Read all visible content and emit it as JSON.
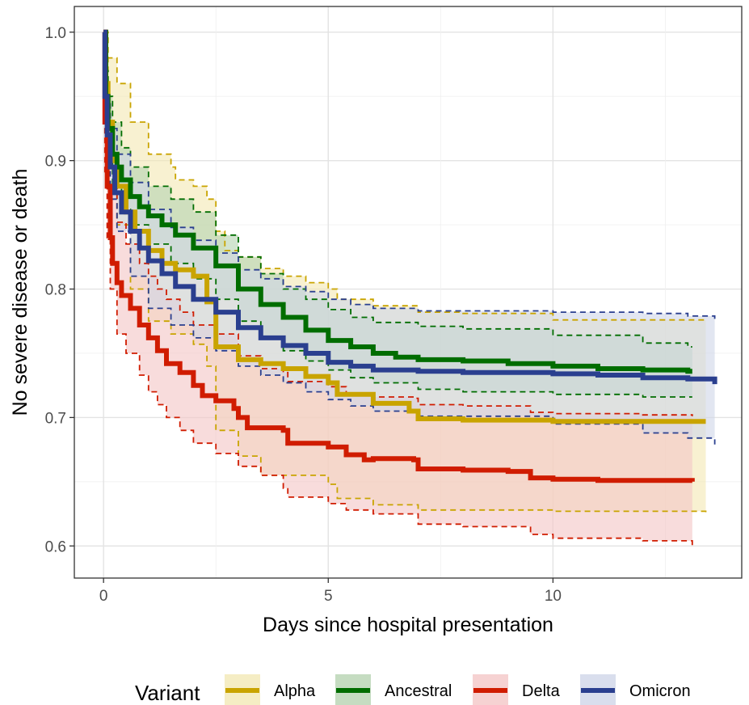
{
  "chart_data": {
    "type": "line",
    "subtype": "kaplan-meier step curves with confidence bands",
    "xlabel": "Days since hospital presentation",
    "ylabel": "No severe disease or death",
    "xlim": [
      -0.65,
      14.2
    ],
    "ylim": [
      0.575,
      1.02
    ],
    "x_ticks": [
      0,
      5,
      10
    ],
    "y_ticks": [
      0.6,
      0.7,
      0.8,
      0.9,
      1.0
    ],
    "y_tick_labels": [
      "0.6",
      "0.7",
      "0.8",
      "0.9",
      "1.0"
    ],
    "grid": true,
    "theme": "bw",
    "legend": {
      "title": "Variant",
      "position": "bottom",
      "entries": [
        "Alpha",
        "Ancestral",
        "Delta",
        "Omicron"
      ]
    },
    "series": [
      {
        "name": "Alpha",
        "color": "#C9A400",
        "fill": "#F3E9B5",
        "points": [
          [
            0,
            1.0
          ],
          [
            0.05,
            0.96
          ],
          [
            0.1,
            0.93
          ],
          [
            0.2,
            0.9
          ],
          [
            0.3,
            0.88
          ],
          [
            0.5,
            0.86
          ],
          [
            0.7,
            0.845
          ],
          [
            1.0,
            0.83
          ],
          [
            1.3,
            0.82
          ],
          [
            1.6,
            0.815
          ],
          [
            2.0,
            0.81
          ],
          [
            2.3,
            0.79
          ],
          [
            2.5,
            0.775
          ],
          [
            2.5,
            0.755
          ],
          [
            3.0,
            0.745
          ],
          [
            3.5,
            0.742
          ],
          [
            4.0,
            0.738
          ],
          [
            4.5,
            0.732
          ],
          [
            5.0,
            0.727
          ],
          [
            5.2,
            0.718
          ],
          [
            6.0,
            0.711
          ],
          [
            6.8,
            0.705
          ],
          [
            7.0,
            0.699
          ],
          [
            8.0,
            0.698
          ],
          [
            10.0,
            0.697
          ],
          [
            13.4,
            0.697
          ]
        ],
        "upper": [
          [
            0,
            1.0
          ],
          [
            0.1,
            0.98
          ],
          [
            0.3,
            0.96
          ],
          [
            0.6,
            0.93
          ],
          [
            1.0,
            0.905
          ],
          [
            1.5,
            0.895
          ],
          [
            1.6,
            0.885
          ],
          [
            2.0,
            0.88
          ],
          [
            2.3,
            0.87
          ],
          [
            2.5,
            0.845
          ],
          [
            2.7,
            0.83
          ],
          [
            3.0,
            0.825
          ],
          [
            3.5,
            0.816
          ],
          [
            4.0,
            0.81
          ],
          [
            4.5,
            0.805
          ],
          [
            5.0,
            0.8
          ],
          [
            5.2,
            0.792
          ],
          [
            6.0,
            0.787
          ],
          [
            7.0,
            0.782
          ],
          [
            8.0,
            0.781
          ],
          [
            10.0,
            0.776
          ],
          [
            13.4,
            0.775
          ]
        ],
        "lower": [
          [
            0,
            1.0
          ],
          [
            0.1,
            0.9
          ],
          [
            0.3,
            0.85
          ],
          [
            0.6,
            0.8
          ],
          [
            1.0,
            0.775
          ],
          [
            1.5,
            0.765
          ],
          [
            2.0,
            0.757
          ],
          [
            2.3,
            0.74
          ],
          [
            2.5,
            0.73
          ],
          [
            2.5,
            0.69
          ],
          [
            3.0,
            0.67
          ],
          [
            3.5,
            0.655
          ],
          [
            4.0,
            0.655
          ],
          [
            5.0,
            0.648
          ],
          [
            5.2,
            0.637
          ],
          [
            6.0,
            0.632
          ],
          [
            7.0,
            0.628
          ],
          [
            10.0,
            0.627
          ],
          [
            13.4,
            0.626
          ]
        ]
      },
      {
        "name": "Ancestral",
        "color": "#006D00",
        "fill": "#B7D3B1",
        "points": [
          [
            0,
            1.0
          ],
          [
            0.05,
            0.95
          ],
          [
            0.1,
            0.925
          ],
          [
            0.2,
            0.905
          ],
          [
            0.3,
            0.895
          ],
          [
            0.4,
            0.885
          ],
          [
            0.6,
            0.872
          ],
          [
            0.8,
            0.864
          ],
          [
            1.0,
            0.857
          ],
          [
            1.3,
            0.85
          ],
          [
            1.6,
            0.842
          ],
          [
            2.0,
            0.832
          ],
          [
            2.5,
            0.818
          ],
          [
            3.0,
            0.8
          ],
          [
            3.5,
            0.788
          ],
          [
            4.0,
            0.778
          ],
          [
            4.5,
            0.768
          ],
          [
            5.0,
            0.76
          ],
          [
            5.5,
            0.755
          ],
          [
            6.0,
            0.75
          ],
          [
            6.5,
            0.747
          ],
          [
            7.0,
            0.745
          ],
          [
            8.0,
            0.744
          ],
          [
            9.0,
            0.742
          ],
          [
            10.0,
            0.74
          ],
          [
            11.0,
            0.738
          ],
          [
            12.0,
            0.737
          ],
          [
            13.0,
            0.736
          ],
          [
            13.1,
            0.736
          ]
        ],
        "upper": [
          [
            0,
            1.0
          ],
          [
            0.05,
            0.97
          ],
          [
            0.1,
            0.95
          ],
          [
            0.2,
            0.93
          ],
          [
            0.4,
            0.91
          ],
          [
            0.6,
            0.895
          ],
          [
            1.0,
            0.88
          ],
          [
            1.5,
            0.87
          ],
          [
            2.0,
            0.86
          ],
          [
            2.5,
            0.842
          ],
          [
            3.0,
            0.825
          ],
          [
            3.5,
            0.812
          ],
          [
            4.0,
            0.8
          ],
          [
            4.5,
            0.792
          ],
          [
            5.0,
            0.784
          ],
          [
            5.5,
            0.778
          ],
          [
            6.0,
            0.774
          ],
          [
            7.0,
            0.771
          ],
          [
            8.0,
            0.769
          ],
          [
            10.0,
            0.764
          ],
          [
            12.0,
            0.758
          ],
          [
            13.0,
            0.755
          ],
          [
            13.1,
            0.755
          ]
        ],
        "lower": [
          [
            0,
            1.0
          ],
          [
            0.05,
            0.93
          ],
          [
            0.1,
            0.9
          ],
          [
            0.2,
            0.88
          ],
          [
            0.4,
            0.862
          ],
          [
            0.6,
            0.85
          ],
          [
            1.0,
            0.835
          ],
          [
            1.5,
            0.82
          ],
          [
            2.0,
            0.808
          ],
          [
            2.5,
            0.792
          ],
          [
            3.0,
            0.775
          ],
          [
            3.5,
            0.762
          ],
          [
            4.0,
            0.752
          ],
          [
            4.5,
            0.744
          ],
          [
            5.0,
            0.737
          ],
          [
            5.5,
            0.731
          ],
          [
            6.0,
            0.727
          ],
          [
            7.0,
            0.722
          ],
          [
            8.0,
            0.72
          ],
          [
            10.0,
            0.718
          ],
          [
            12.0,
            0.716
          ],
          [
            13.0,
            0.716
          ],
          [
            13.1,
            0.716
          ]
        ]
      },
      {
        "name": "Delta",
        "color": "#D01C00",
        "fill": "#F4C7C7",
        "points": [
          [
            0,
            1.0
          ],
          [
            0.03,
            0.93
          ],
          [
            0.08,
            0.88
          ],
          [
            0.15,
            0.84
          ],
          [
            0.2,
            0.82
          ],
          [
            0.3,
            0.805
          ],
          [
            0.4,
            0.795
          ],
          [
            0.6,
            0.785
          ],
          [
            0.8,
            0.772
          ],
          [
            1.0,
            0.762
          ],
          [
            1.2,
            0.752
          ],
          [
            1.4,
            0.742
          ],
          [
            1.7,
            0.735
          ],
          [
            2.0,
            0.725
          ],
          [
            2.2,
            0.717
          ],
          [
            2.5,
            0.713
          ],
          [
            2.9,
            0.707
          ],
          [
            3.0,
            0.7
          ],
          [
            3.2,
            0.692
          ],
          [
            4.0,
            0.69
          ],
          [
            4.1,
            0.68
          ],
          [
            5.0,
            0.677
          ],
          [
            5.4,
            0.671
          ],
          [
            5.8,
            0.667
          ],
          [
            6.0,
            0.668
          ],
          [
            6.9,
            0.667
          ],
          [
            7.0,
            0.66
          ],
          [
            8.0,
            0.659
          ],
          [
            9.0,
            0.658
          ],
          [
            9.5,
            0.653
          ],
          [
            10.0,
            0.652
          ],
          [
            11.0,
            0.651
          ],
          [
            12.0,
            0.651
          ],
          [
            13.1,
            0.65
          ]
        ],
        "upper": [
          [
            0,
            1.0
          ],
          [
            0.03,
            0.96
          ],
          [
            0.08,
            0.92
          ],
          [
            0.15,
            0.88
          ],
          [
            0.3,
            0.852
          ],
          [
            0.5,
            0.835
          ],
          [
            0.8,
            0.82
          ],
          [
            1.0,
            0.81
          ],
          [
            1.2,
            0.8
          ],
          [
            1.4,
            0.792
          ],
          [
            1.7,
            0.782
          ],
          [
            2.0,
            0.772
          ],
          [
            2.5,
            0.765
          ],
          [
            3.0,
            0.748
          ],
          [
            3.5,
            0.738
          ],
          [
            4.0,
            0.735
          ],
          [
            4.1,
            0.728
          ],
          [
            5.0,
            0.724
          ],
          [
            5.4,
            0.719
          ],
          [
            6.0,
            0.716
          ],
          [
            6.9,
            0.715
          ],
          [
            7.0,
            0.71
          ],
          [
            8.0,
            0.709
          ],
          [
            9.5,
            0.704
          ],
          [
            10.0,
            0.703
          ],
          [
            12.0,
            0.702
          ],
          [
            13.1,
            0.701
          ]
        ],
        "lower": [
          [
            0,
            1.0
          ],
          [
            0.03,
            0.89
          ],
          [
            0.08,
            0.84
          ],
          [
            0.15,
            0.8
          ],
          [
            0.3,
            0.765
          ],
          [
            0.5,
            0.75
          ],
          [
            0.8,
            0.733
          ],
          [
            1.0,
            0.72
          ],
          [
            1.2,
            0.71
          ],
          [
            1.4,
            0.7
          ],
          [
            1.7,
            0.69
          ],
          [
            2.0,
            0.68
          ],
          [
            2.5,
            0.672
          ],
          [
            3.0,
            0.662
          ],
          [
            3.5,
            0.655
          ],
          [
            4.0,
            0.645
          ],
          [
            4.1,
            0.638
          ],
          [
            5.0,
            0.633
          ],
          [
            5.4,
            0.628
          ],
          [
            6.0,
            0.625
          ],
          [
            7.0,
            0.617
          ],
          [
            8.0,
            0.615
          ],
          [
            9.5,
            0.609
          ],
          [
            10.0,
            0.606
          ],
          [
            12.0,
            0.604
          ],
          [
            13.1,
            0.6
          ]
        ]
      },
      {
        "name": "Omicron",
        "color": "#2A3F8F",
        "fill": "#D0D6E9",
        "points": [
          [
            0,
            1.0
          ],
          [
            0.03,
            0.95
          ],
          [
            0.08,
            0.92
          ],
          [
            0.15,
            0.895
          ],
          [
            0.25,
            0.875
          ],
          [
            0.4,
            0.86
          ],
          [
            0.6,
            0.845
          ],
          [
            0.8,
            0.832
          ],
          [
            1.0,
            0.822
          ],
          [
            1.3,
            0.812
          ],
          [
            1.6,
            0.802
          ],
          [
            2.0,
            0.792
          ],
          [
            2.5,
            0.782
          ],
          [
            3.0,
            0.77
          ],
          [
            3.5,
            0.762
          ],
          [
            4.0,
            0.756
          ],
          [
            4.5,
            0.75
          ],
          [
            5.0,
            0.743
          ],
          [
            5.5,
            0.74
          ],
          [
            6.0,
            0.737
          ],
          [
            7.0,
            0.736
          ],
          [
            8.0,
            0.735
          ],
          [
            9.0,
            0.735
          ],
          [
            10.0,
            0.734
          ],
          [
            11.0,
            0.733
          ],
          [
            12.0,
            0.731
          ],
          [
            13.0,
            0.73
          ],
          [
            13.5,
            0.73
          ],
          [
            13.6,
            0.726
          ]
        ],
        "upper": [
          [
            0,
            1.0
          ],
          [
            0.03,
            0.97
          ],
          [
            0.08,
            0.945
          ],
          [
            0.15,
            0.925
          ],
          [
            0.3,
            0.905
          ],
          [
            0.6,
            0.883
          ],
          [
            1.0,
            0.862
          ],
          [
            1.5,
            0.848
          ],
          [
            2.0,
            0.838
          ],
          [
            2.5,
            0.828
          ],
          [
            3.0,
            0.815
          ],
          [
            3.5,
            0.808
          ],
          [
            4.0,
            0.802
          ],
          [
            4.5,
            0.798
          ],
          [
            5.0,
            0.792
          ],
          [
            5.5,
            0.788
          ],
          [
            6.0,
            0.785
          ],
          [
            7.0,
            0.783
          ],
          [
            10.0,
            0.782
          ],
          [
            12.0,
            0.781
          ],
          [
            13.0,
            0.779
          ],
          [
            13.6,
            0.776
          ]
        ],
        "lower": [
          [
            0,
            1.0
          ],
          [
            0.03,
            0.93
          ],
          [
            0.08,
            0.9
          ],
          [
            0.15,
            0.87
          ],
          [
            0.3,
            0.845
          ],
          [
            0.6,
            0.81
          ],
          [
            1.0,
            0.785
          ],
          [
            1.5,
            0.772
          ],
          [
            2.0,
            0.762
          ],
          [
            2.5,
            0.752
          ],
          [
            3.0,
            0.74
          ],
          [
            3.5,
            0.733
          ],
          [
            4.0,
            0.727
          ],
          [
            4.5,
            0.72
          ],
          [
            5.0,
            0.714
          ],
          [
            5.5,
            0.709
          ],
          [
            6.0,
            0.705
          ],
          [
            7.0,
            0.701
          ],
          [
            8.0,
            0.701
          ],
          [
            10.0,
            0.695
          ],
          [
            12.0,
            0.688
          ],
          [
            13.0,
            0.684
          ],
          [
            13.6,
            0.679
          ]
        ]
      }
    ]
  }
}
